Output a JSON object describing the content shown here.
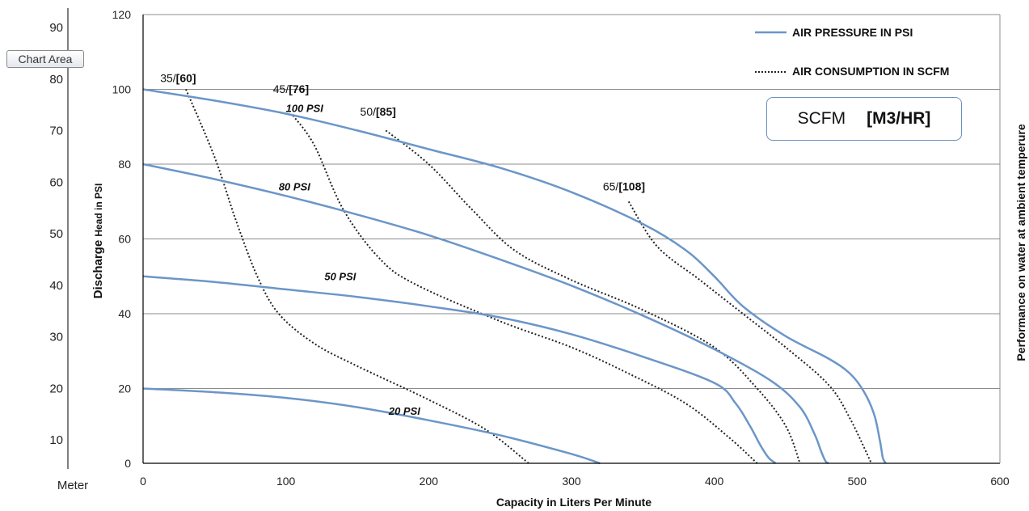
{
  "tooltip": {
    "text": "Chart Area"
  },
  "scfm_box": {
    "scfm_text": "SCFM",
    "m3_text": "[M3/HR]"
  },
  "chart_data": {
    "type": "line",
    "title": "",
    "xlabel": "Capacity in Liters Per Minute",
    "ylabel_main": "Discharge ",
    "ylabel_small": "Head in PSI",
    "right_label": "Performance on water at ambient temperure",
    "meter_label": "Meter",
    "xlim": [
      0,
      600
    ],
    "ylim": [
      0,
      120
    ],
    "x_ticks": [
      "0",
      "100",
      "200",
      "300",
      "400",
      "500",
      "600"
    ],
    "y_ticks": [
      "0",
      "20",
      "40",
      "60",
      "80",
      "100",
      "120"
    ],
    "meter_ticks": [
      "10",
      "20",
      "30",
      "40",
      "50",
      "60",
      "70",
      "80",
      "90"
    ],
    "grid": "horizontal",
    "legend_position": "top-right",
    "legend": [
      {
        "label": "AIR PRESSURE IN PSI",
        "style": "solid"
      },
      {
        "label": "AIR CONSUMPTION IN SCFM",
        "style": "dotted"
      }
    ],
    "colors": {
      "pressure": "#6b96c8",
      "consumption": "#222222",
      "grid": "#8c8c8c",
      "axis": "#000000"
    },
    "pressure_series": [
      {
        "name": "100 PSI",
        "label_at": [
          100,
          94
        ],
        "points": [
          [
            0,
            100
          ],
          [
            50,
            97
          ],
          [
            100,
            93.5
          ],
          [
            150,
            89
          ],
          [
            200,
            84
          ],
          [
            250,
            79
          ],
          [
            300,
            72.5
          ],
          [
            350,
            64
          ],
          [
            380,
            57
          ],
          [
            400,
            50
          ],
          [
            420,
            42
          ],
          [
            450,
            34
          ],
          [
            480,
            28
          ],
          [
            495,
            24
          ],
          [
            505,
            19
          ],
          [
            512,
            13
          ],
          [
            516,
            6
          ],
          [
            518,
            1.5
          ],
          [
            520,
            0
          ]
        ]
      },
      {
        "name": "80 PSI",
        "label_at": [
          95,
          73
        ],
        "points": [
          [
            0,
            80
          ],
          [
            50,
            76
          ],
          [
            100,
            71.5
          ],
          [
            150,
            66.5
          ],
          [
            200,
            61
          ],
          [
            250,
            54.5
          ],
          [
            300,
            47.5
          ],
          [
            350,
            39.5
          ],
          [
            400,
            30.5
          ],
          [
            440,
            22
          ],
          [
            460,
            15
          ],
          [
            470,
            8
          ],
          [
            475,
            3
          ],
          [
            478,
            0.5
          ],
          [
            480,
            0
          ]
        ]
      },
      {
        "name": "50 PSI",
        "label_at": [
          127,
          49
        ],
        "points": [
          [
            0,
            50
          ],
          [
            50,
            48.5
          ],
          [
            100,
            46.5
          ],
          [
            150,
            44.5
          ],
          [
            200,
            42
          ],
          [
            250,
            39
          ],
          [
            300,
            34.5
          ],
          [
            350,
            28.5
          ],
          [
            400,
            21.5
          ],
          [
            415,
            16
          ],
          [
            425,
            10
          ],
          [
            432,
            5
          ],
          [
            438,
            1.5
          ],
          [
            443,
            0
          ]
        ]
      },
      {
        "name": "20 PSI",
        "label_at": [
          172,
          13
        ],
        "points": [
          [
            0,
            20
          ],
          [
            50,
            19
          ],
          [
            100,
            17.5
          ],
          [
            150,
            15
          ],
          [
            200,
            11.5
          ],
          [
            250,
            7.5
          ],
          [
            300,
            2.5
          ],
          [
            320,
            0
          ]
        ]
      }
    ],
    "consumption_series": [
      {
        "name_plain": "35/",
        "name_bold": "[60]",
        "label_at": [
          12,
          102
        ],
        "points": [
          [
            30,
            100
          ],
          [
            50,
            82
          ],
          [
            65,
            65
          ],
          [
            80,
            50
          ],
          [
            95,
            40
          ],
          [
            120,
            32
          ],
          [
            150,
            26
          ],
          [
            200,
            17
          ],
          [
            240,
            9
          ],
          [
            270,
            0
          ]
        ]
      },
      {
        "name_plain": "45/",
        "name_bold": "[76]",
        "label_at": [
          91,
          99
        ],
        "points": [
          [
            105,
            93
          ],
          [
            120,
            85
          ],
          [
            140,
            68
          ],
          [
            165,
            55
          ],
          [
            190,
            48
          ],
          [
            250,
            38
          ],
          [
            300,
            31
          ],
          [
            340,
            24
          ],
          [
            380,
            16
          ],
          [
            410,
            7
          ],
          [
            430,
            0
          ]
        ]
      },
      {
        "name_plain": "50/",
        "name_bold": "[85]",
        "label_at": [
          152,
          93
        ],
        "points": [
          [
            170,
            89
          ],
          [
            200,
            80
          ],
          [
            230,
            68
          ],
          [
            260,
            57
          ],
          [
            300,
            49
          ],
          [
            350,
            41
          ],
          [
            400,
            31
          ],
          [
            430,
            20
          ],
          [
            450,
            10
          ],
          [
            460,
            0
          ]
        ]
      },
      {
        "name_plain": "65/",
        "name_bold": "[108]",
        "label_at": [
          322,
          73
        ],
        "points": [
          [
            340,
            70
          ],
          [
            360,
            58
          ],
          [
            390,
            49
          ],
          [
            420,
            40
          ],
          [
            450,
            31
          ],
          [
            480,
            21
          ],
          [
            495,
            12
          ],
          [
            510,
            0
          ]
        ]
      }
    ]
  }
}
